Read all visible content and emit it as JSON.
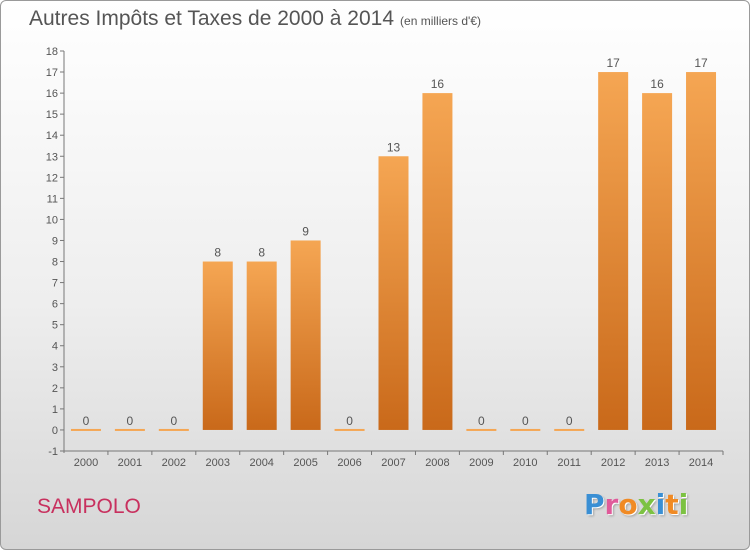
{
  "title": "Autres Impôts et Taxes de 2000 à 2014",
  "subtitle": "(en milliers d'€)",
  "commune": "SAMPOLO",
  "logo": {
    "letters": [
      "P",
      "r",
      "o",
      "x",
      "i",
      "t",
      "i"
    ],
    "colors": [
      "#3a8fd4",
      "#e05a9a",
      "#f08a24",
      "#7cc242",
      "#3a8fd4",
      "#f08a24",
      "#7cc242"
    ]
  },
  "chart_data": {
    "type": "bar",
    "categories": [
      "2000",
      "2001",
      "2002",
      "2003",
      "2004",
      "2005",
      "2006",
      "2007",
      "2008",
      "2009",
      "2010",
      "2011",
      "2012",
      "2013",
      "2014"
    ],
    "values": [
      0,
      0,
      0,
      8,
      8,
      9,
      0,
      13,
      16,
      0,
      0,
      0,
      17,
      16,
      17
    ],
    "ylim": [
      -1,
      18
    ],
    "yticks": [
      -1,
      0,
      1,
      2,
      3,
      4,
      5,
      6,
      7,
      8,
      9,
      10,
      11,
      12,
      13,
      14,
      15,
      16,
      17,
      18
    ],
    "grid": false,
    "bar_color_top": "#f5a653",
    "bar_color_bottom": "#c9691a"
  }
}
